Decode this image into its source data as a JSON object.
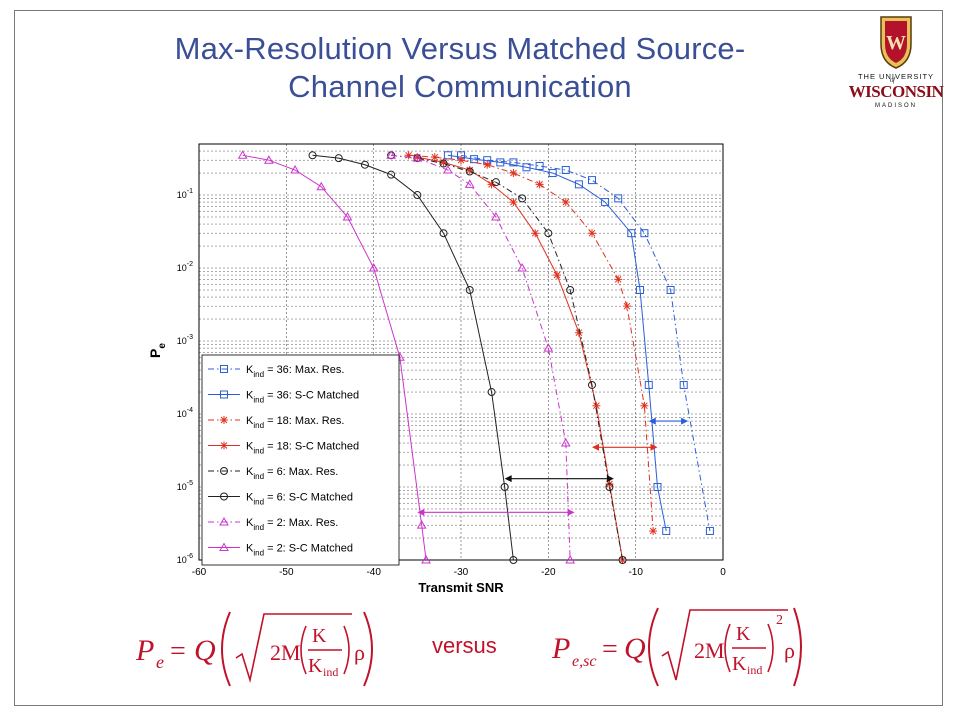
{
  "slide": {
    "title_line1": "Max-Resolution Versus Matched Source-",
    "title_line2": "Channel Communication",
    "versus": "versus",
    "title_color": "#3a4f95",
    "formula_color": "#c0122a"
  },
  "logo": {
    "icon": "uw-crest-icon",
    "line1": "THE UNIVERSITY",
    "of": "of",
    "line2": "WISCONSIN",
    "line3": "MADISON",
    "crest_text": "W",
    "color": "#8b0d1a"
  },
  "formulas": {
    "left": {
      "lhs": "P",
      "lhs_sub": "e",
      "eq": "=",
      "q": "Q",
      "coef": "2M",
      "num": "K",
      "den": "K",
      "den_sub": "ind",
      "rho": "ρ",
      "power": ""
    },
    "right": {
      "lhs": "P",
      "lhs_sub": "e,sc",
      "eq": "=",
      "q": "Q",
      "coef": "2M",
      "num": "K",
      "den": "K",
      "den_sub": "ind",
      "rho": "ρ",
      "power": "2"
    }
  },
  "chart_data": {
    "type": "line",
    "xlabel": "Transmit SNR",
    "ylabel": "P",
    "ylabel_sub": "e",
    "xlim": [
      -60,
      0
    ],
    "ylim": [
      1e-06,
      0.5
    ],
    "yscale": "log",
    "xticks": [
      -60,
      -50,
      -40,
      -30,
      -20,
      -10,
      0
    ],
    "yticks": [
      {
        "value": 0.1,
        "base": "10",
        "exp": "-1"
      },
      {
        "value": 0.01,
        "base": "10",
        "exp": "-2"
      },
      {
        "value": 0.001,
        "base": "10",
        "exp": "-3"
      },
      {
        "value": 0.0001,
        "base": "10",
        "exp": "-4"
      },
      {
        "value": 1e-05,
        "base": "10",
        "exp": "-5"
      },
      {
        "value": 1e-06,
        "base": "10",
        "exp": "-6"
      }
    ],
    "grid": true,
    "legend_position": "bottom-left",
    "series": [
      {
        "label_pre": "K",
        "label_sub": "ind",
        "label_post": " = 36: Max. Res.",
        "color": "#2b5fd9",
        "dash": "dashdot",
        "marker": "square",
        "x": [
          -30,
          -27,
          -24,
          -21,
          -18,
          -15,
          -12,
          -9,
          -6,
          -4.5,
          -1.5
        ],
        "y": [
          0.35,
          0.3,
          0.28,
          0.25,
          0.22,
          0.16,
          0.09,
          0.03,
          0.005,
          0.00025,
          2.5e-06
        ]
      },
      {
        "label_pre": "K",
        "label_sub": "ind",
        "label_post": " = 36: S-C Matched",
        "color": "#2b5fd9",
        "dash": "solid",
        "marker": "square",
        "x": [
          -31.5,
          -28.5,
          -25.5,
          -22.5,
          -19.5,
          -16.5,
          -13.5,
          -10.5,
          -9.5,
          -8.5,
          -7.5,
          -6.5
        ],
        "y": [
          0.35,
          0.31,
          0.28,
          0.24,
          0.2,
          0.14,
          0.08,
          0.03,
          0.005,
          0.00025,
          1e-05,
          2.5e-06
        ]
      },
      {
        "label_pre": "K",
        "label_sub": "ind",
        "label_post": " = 18: Max. Res.",
        "color": "#e0301e",
        "dash": "dashdot",
        "marker": "star",
        "x": [
          -36,
          -33,
          -30,
          -27,
          -24,
          -21,
          -18,
          -15,
          -12,
          -11,
          -9,
          -8
        ],
        "y": [
          0.35,
          0.33,
          0.3,
          0.26,
          0.2,
          0.14,
          0.08,
          0.03,
          0.007,
          0.003,
          0.00013,
          2.5e-06
        ]
      },
      {
        "label_pre": "K",
        "label_sub": "ind",
        "label_post": " = 18: S-C Matched",
        "color": "#e0301e",
        "dash": "solid",
        "marker": "star",
        "x": [
          -35,
          -32,
          -29,
          -26.5,
          -24,
          -21.5,
          -19,
          -16.5,
          -14.5,
          -13,
          -11.5
        ],
        "y": [
          0.33,
          0.28,
          0.22,
          0.14,
          0.08,
          0.03,
          0.008,
          0.0013,
          0.00013,
          1.1e-05,
          1e-06
        ]
      },
      {
        "label_pre": "K",
        "label_sub": "ind",
        "label_post": " = 6: Max. Res.",
        "color": "#222222",
        "dash": "dashdot",
        "marker": "circle",
        "x": [
          -38,
          -35,
          -32,
          -29,
          -26,
          -23,
          -20,
          -17.5,
          -15,
          -13,
          -11.5
        ],
        "y": [
          0.35,
          0.32,
          0.27,
          0.21,
          0.15,
          0.09,
          0.03,
          0.005,
          0.00025,
          1e-05,
          1e-06
        ]
      },
      {
        "label_pre": "K",
        "label_sub": "ind",
        "label_post": " = 6: S-C Matched",
        "color": "#222222",
        "dash": "solid",
        "marker": "circle",
        "x": [
          -47,
          -44,
          -41,
          -38,
          -35,
          -32,
          -29,
          -26.5,
          -25,
          -24
        ],
        "y": [
          0.35,
          0.32,
          0.26,
          0.19,
          0.1,
          0.03,
          0.005,
          0.0002,
          1e-05,
          1e-06
        ]
      },
      {
        "label_pre": "K",
        "label_sub": "ind",
        "label_post": " = 2: Max. Res.",
        "color": "#cc33cc",
        "dash": "dashdot",
        "marker": "triangle",
        "x": [
          -38,
          -35,
          -31.5,
          -29,
          -26,
          -23,
          -20,
          -18,
          -17.5
        ],
        "y": [
          0.35,
          0.32,
          0.22,
          0.14,
          0.05,
          0.01,
          0.0008,
          4e-05,
          1e-06
        ]
      },
      {
        "label_pre": "K",
        "label_sub": "ind",
        "label_post": " = 2: S-C Matched",
        "color": "#cc33cc",
        "dash": "solid",
        "marker": "triangle",
        "x": [
          -55,
          -52,
          -49,
          -46,
          -43,
          -40,
          -37,
          -34.5,
          -34
        ],
        "y": [
          0.35,
          0.3,
          0.22,
          0.13,
          0.05,
          0.01,
          0.0006,
          3e-06,
          1e-06
        ]
      }
    ],
    "annotations": [
      {
        "x1": -8.5,
        "x2": -4,
        "y": 8e-05,
        "color": "#2b5fd9"
      },
      {
        "x1": -15,
        "x2": -7.5,
        "y": 3.5e-05,
        "color": "#e0301e"
      },
      {
        "x1": -25,
        "x2": -12.5,
        "y": 1.3e-05,
        "color": "#111111"
      },
      {
        "x1": -35,
        "x2": -17,
        "y": 4.5e-06,
        "color": "#cc33cc"
      }
    ]
  }
}
